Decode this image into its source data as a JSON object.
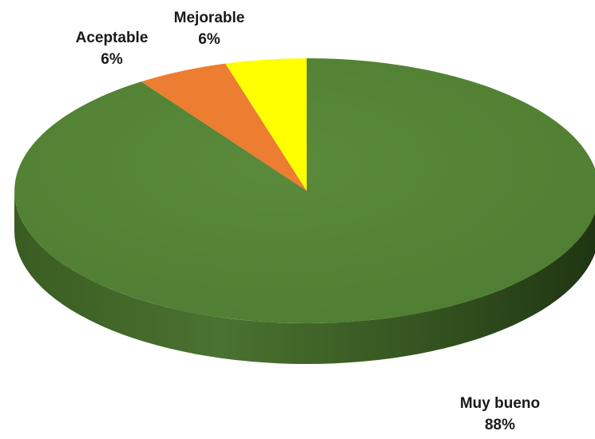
{
  "chart_data": {
    "type": "pie",
    "style": "3d",
    "title": "",
    "slices": [
      {
        "label": "Muy bueno",
        "value": 88,
        "display": "88%",
        "color": "#538135"
      },
      {
        "label": "Mejorable",
        "value": 6,
        "display": "6%",
        "color": "#ED7D31"
      },
      {
        "label": "Aceptable",
        "value": 6,
        "display": "6%",
        "color": "#FFFF00"
      }
    ],
    "legend": "none",
    "data_labels": "outside"
  }
}
